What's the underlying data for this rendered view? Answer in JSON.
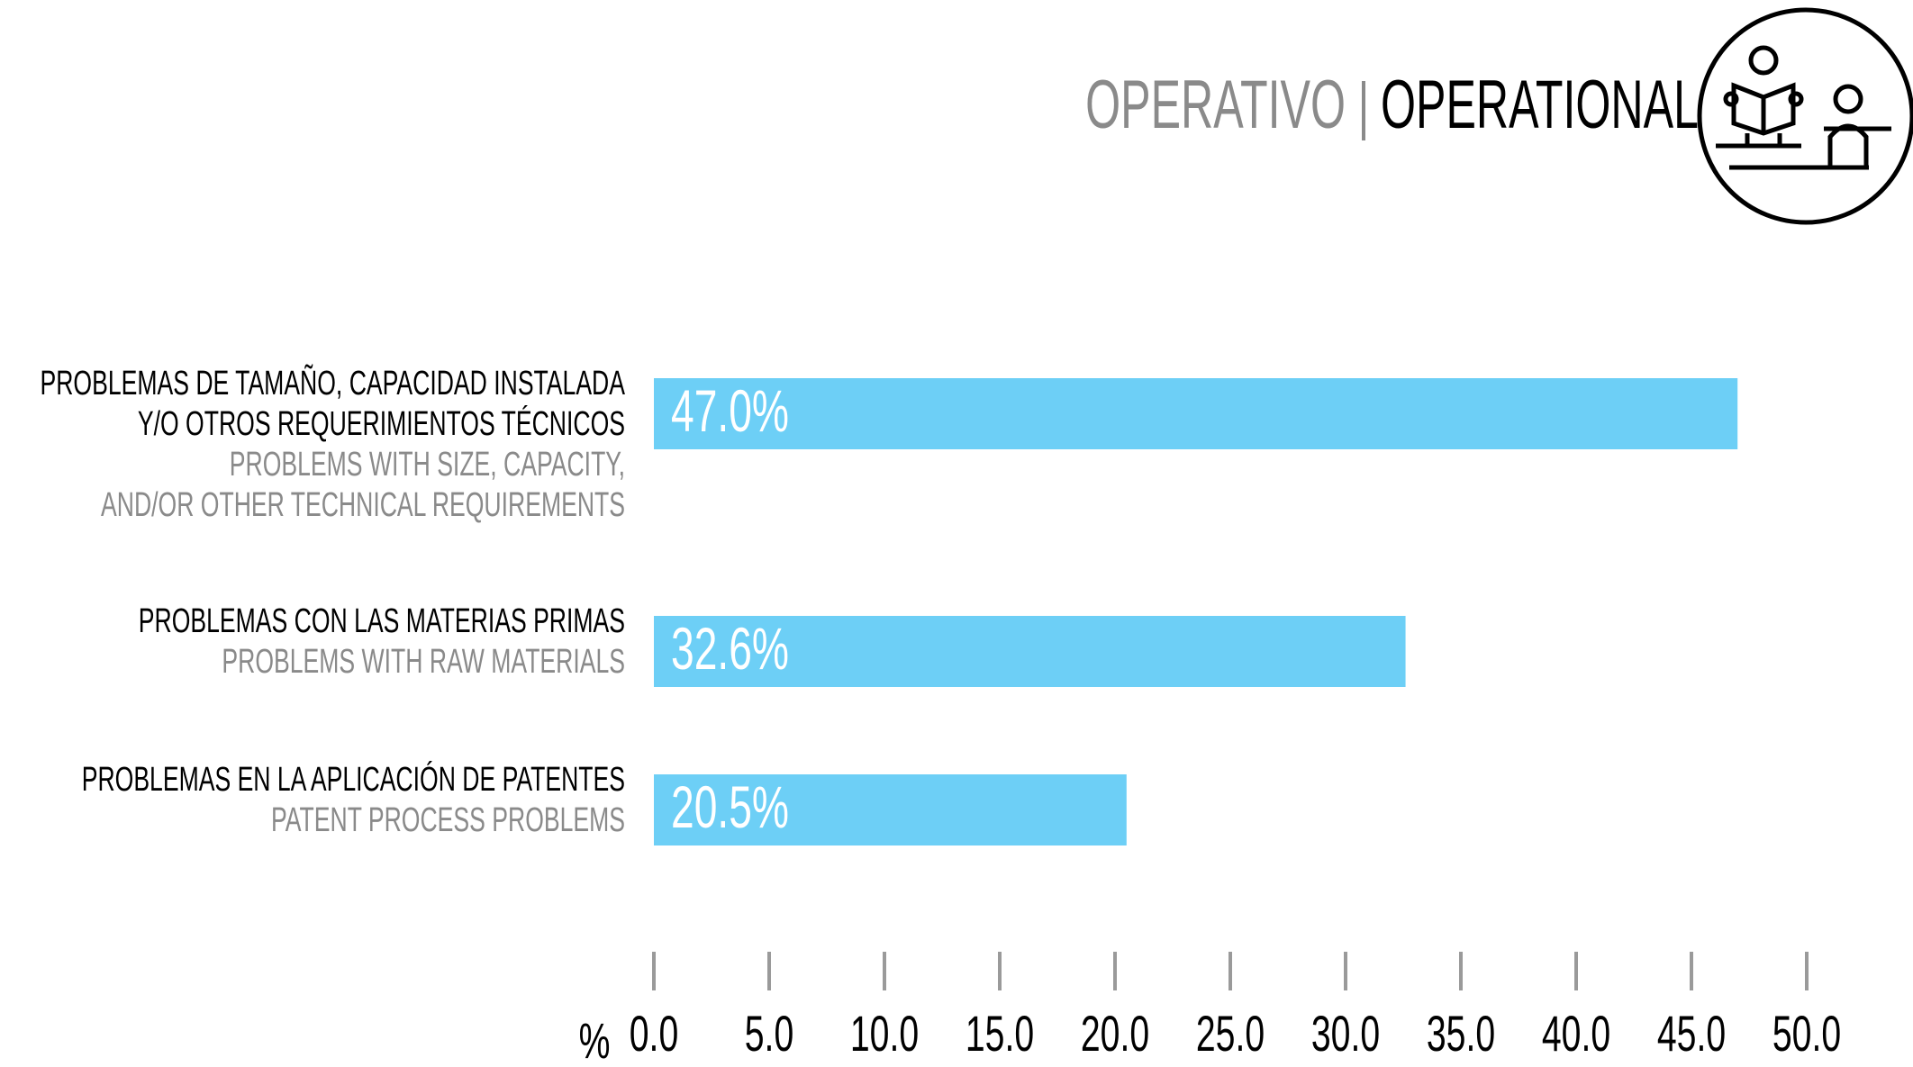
{
  "chart_data": {
    "type": "barh",
    "title_es": "OPERATIVO",
    "title_en": "OPERATIONAL",
    "categories": [
      [
        "PROBLEMAS DE TAMAÑO, CAPACIDAD INSTALADA",
        "Y/O OTROS REQUERIMIENTOS TÉCNICOS"
      ],
      [
        "PROBLEMAS CON LAS MATERIAS PRIMAS"
      ],
      [
        "PROBLEMAS EN LA APLICACIÓN DE PATENTES"
      ]
    ],
    "categories_en": [
      [
        "PROBLEMS WITH SIZE, CAPACITY,",
        "AND/OR OTHER TECHNICAL REQUIREMENTS"
      ],
      [
        "PROBLEMS WITH RAW MATERIALS"
      ],
      [
        "PATENT PROCESS PROBLEMS"
      ]
    ],
    "values": [
      47.0,
      32.6,
      20.5
    ],
    "value_labels": [
      "47.0%",
      "32.6%",
      "20.5%"
    ],
    "color": "#6dcff6",
    "xlabel": "%",
    "xlim": [
      0,
      50
    ],
    "xticks": [
      {
        "value": 0,
        "label": "0.0"
      },
      {
        "value": 5,
        "label": "5.0"
      },
      {
        "value": 10,
        "label": "10.0"
      },
      {
        "value": 15,
        "label": "15.0"
      },
      {
        "value": 20,
        "label": "20.0"
      },
      {
        "value": 25,
        "label": "25.0"
      },
      {
        "value": 30,
        "label": "30.0"
      },
      {
        "value": 35,
        "label": "35.0"
      },
      {
        "value": 40,
        "label": "40.0"
      },
      {
        "value": 45,
        "label": "45.0"
      },
      {
        "value": 50,
        "label": "50.0"
      }
    ]
  }
}
